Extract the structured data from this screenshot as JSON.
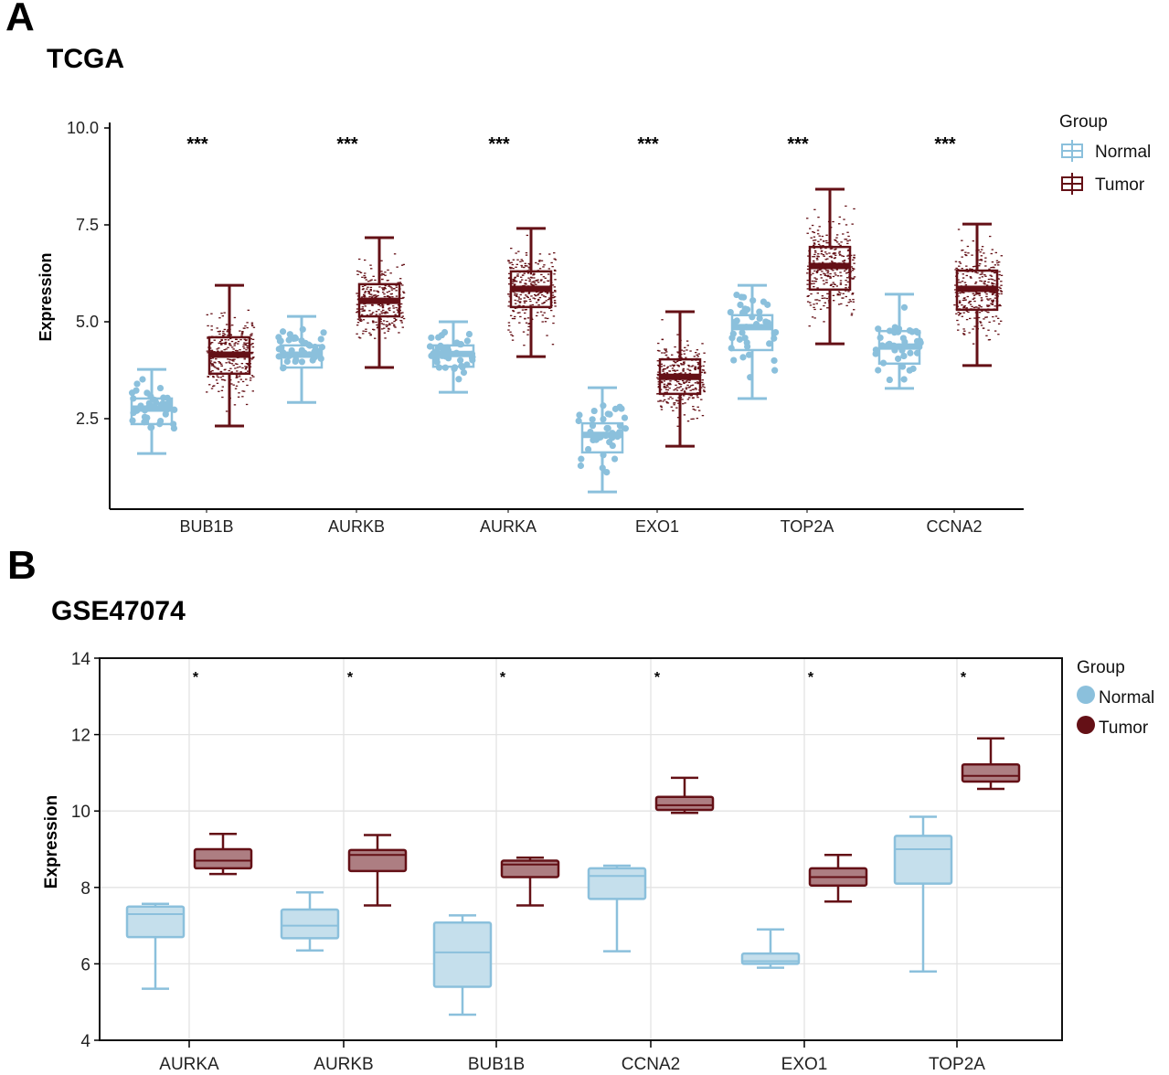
{
  "panels": {
    "a": {
      "letter": "A",
      "title": "TCGA"
    },
    "b": {
      "letter": "B",
      "title": "GSE47074"
    }
  },
  "colors": {
    "normal": "#8BC0DC",
    "tumor": "#641016",
    "normal_fill": "#C5DFEC",
    "tumor_fill": "#AD7E82",
    "grid": "#e3e3e3"
  },
  "chart_data": [
    {
      "type": "box",
      "title": "TCGA",
      "xlabel": "",
      "ylabel": "Expression",
      "ylim": [
        0.2,
        10.1
      ],
      "yticks": [
        "10.0",
        "7.5",
        "5.0",
        "2.5"
      ],
      "ytick_values": [
        10.0,
        7.5,
        5.0,
        2.5
      ],
      "grid": false,
      "jitter_points": true,
      "legend": {
        "title": "Group",
        "position": "top-right",
        "entries": [
          "Normal",
          "Tumor"
        ],
        "marker": "boxplot"
      },
      "categories": [
        "BUB1B",
        "AURKB",
        "AURKA",
        "EXO1",
        "TOP2A",
        "CCNA2"
      ],
      "significance": [
        "***",
        "***",
        "***",
        "***",
        "***",
        "***"
      ],
      "series": [
        {
          "name": "Normal",
          "boxes": [
            {
              "min": 1.6,
              "q1": 2.36,
              "median": 2.76,
              "q3": 3.02,
              "max": 3.77
            },
            {
              "min": 2.92,
              "q1": 3.82,
              "median": 4.15,
              "q3": 4.39,
              "max": 5.14
            },
            {
              "min": 3.18,
              "q1": 3.84,
              "median": 4.17,
              "q3": 4.39,
              "max": 5.0
            },
            {
              "min": 0.61,
              "q1": 1.63,
              "median": 2.08,
              "q3": 2.38,
              "max": 3.3
            },
            {
              "min": 3.02,
              "q1": 4.27,
              "median": 4.86,
              "q3": 5.17,
              "max": 5.94
            },
            {
              "min": 3.28,
              "q1": 3.92,
              "median": 4.36,
              "q3": 4.76,
              "max": 5.71
            }
          ]
        },
        {
          "name": "Tumor",
          "boxes": [
            {
              "min": 2.31,
              "q1": 3.66,
              "median": 4.15,
              "q3": 4.6,
              "max": 5.94
            },
            {
              "min": 3.82,
              "q1": 5.14,
              "median": 5.54,
              "q3": 5.97,
              "max": 7.17
            },
            {
              "min": 4.1,
              "q1": 5.38,
              "median": 5.85,
              "q3": 6.3,
              "max": 7.41
            },
            {
              "min": 1.79,
              "q1": 3.14,
              "median": 3.58,
              "q3": 4.03,
              "max": 5.26
            },
            {
              "min": 4.43,
              "q1": 5.83,
              "median": 6.44,
              "q3": 6.93,
              "max": 8.42
            },
            {
              "min": 3.87,
              "q1": 5.31,
              "median": 5.85,
              "q3": 6.32,
              "max": 7.52
            }
          ]
        }
      ]
    },
    {
      "type": "box",
      "title": "GSE47074",
      "xlabel": "",
      "ylabel": "Expression",
      "ylim": [
        4,
        14
      ],
      "yticks": [
        "14",
        "12",
        "10",
        "8",
        "6",
        "4"
      ],
      "ytick_values": [
        14,
        12,
        10,
        8,
        6,
        4
      ],
      "grid": true,
      "legend": {
        "title": "Group",
        "position": "top-right",
        "entries": [
          "Normal",
          "Tumor"
        ],
        "marker": "circle"
      },
      "categories": [
        "AURKA",
        "AURKB",
        "BUB1B",
        "CCNA2",
        "EXO1",
        "TOP2A"
      ],
      "significance": [
        "*",
        "*",
        "*",
        "*",
        "*",
        "*"
      ],
      "series": [
        {
          "name": "Normal",
          "boxes": [
            {
              "min": 5.35,
              "q1": 6.7,
              "median": 7.3,
              "q3": 7.5,
              "max": 7.57
            },
            {
              "min": 6.35,
              "q1": 6.67,
              "median": 7.0,
              "q3": 7.42,
              "max": 7.87
            },
            {
              "min": 4.67,
              "q1": 5.4,
              "median": 6.3,
              "q3": 7.08,
              "max": 7.27
            },
            {
              "min": 6.33,
              "q1": 7.7,
              "median": 8.3,
              "q3": 8.5,
              "max": 8.57
            },
            {
              "min": 5.9,
              "q1": 6.0,
              "median": 6.07,
              "q3": 6.27,
              "max": 6.9
            },
            {
              "min": 5.8,
              "q1": 8.1,
              "median": 9.0,
              "q3": 9.35,
              "max": 9.85
            }
          ]
        },
        {
          "name": "Tumor",
          "boxes": [
            {
              "min": 8.35,
              "q1": 8.5,
              "median": 8.7,
              "q3": 9.0,
              "max": 9.4
            },
            {
              "min": 7.53,
              "q1": 8.43,
              "median": 8.85,
              "q3": 8.98,
              "max": 9.37
            },
            {
              "min": 7.53,
              "q1": 8.27,
              "median": 8.6,
              "q3": 8.7,
              "max": 8.78
            },
            {
              "min": 9.95,
              "q1": 10.03,
              "median": 10.15,
              "q3": 10.37,
              "max": 10.87
            },
            {
              "min": 7.63,
              "q1": 8.05,
              "median": 8.27,
              "q3": 8.5,
              "max": 8.85
            },
            {
              "min": 10.58,
              "q1": 10.77,
              "median": 10.92,
              "q3": 11.22,
              "max": 11.9
            }
          ]
        }
      ]
    }
  ]
}
